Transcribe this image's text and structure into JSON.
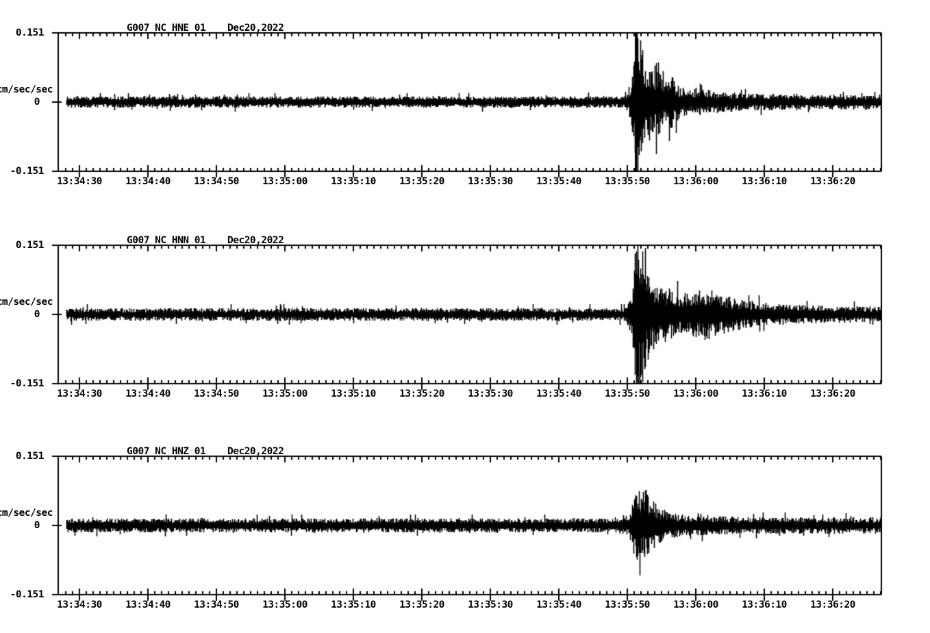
{
  "page": {
    "background": "#ffffff",
    "ink": "#000000",
    "description": "Three-channel strong-motion seismogram display, station G007 network NC, event of Dec 20 2022 ~13:35:51"
  },
  "chart_data": [
    {
      "type": "line",
      "kind": "seismogram",
      "station": "G007_NC_HNE_01",
      "date": "Dec20,2022",
      "ylabel": "cm/sec/sec",
      "ylim": [
        -0.151,
        0.151
      ],
      "y_tick_labels": [
        "0.151",
        "0",
        "-0.151"
      ],
      "x_tick_labels": [
        "13:34:30",
        "13:34:40",
        "13:34:50",
        "13:35:00",
        "13:35:10",
        "13:35:20",
        "13:35:30",
        "13:35:40",
        "13:35:50",
        "13:36:00",
        "13:36:10",
        "13:36:20"
      ],
      "x_major_step_s": 10,
      "x_minor_step_s": 1,
      "x_range": [
        "13:34:27",
        "13:36:27"
      ],
      "grid": false,
      "noise_amplitude": 0.0085,
      "event": {
        "time": "13:35:51",
        "peak_up": 0.13,
        "peak_down": -0.151,
        "clipped": true,
        "clip_t": 81.2
      },
      "seed": 19,
      "envelope": [
        [
          -3,
          0.0085
        ],
        [
          79.3,
          0.0085
        ],
        [
          80.2,
          0.016
        ],
        [
          80.8,
          0.05
        ],
        [
          81.2,
          0.125
        ],
        [
          81.8,
          0.1
        ],
        [
          82.5,
          0.062
        ],
        [
          83.5,
          0.045
        ],
        [
          84.5,
          0.05
        ],
        [
          85.5,
          0.032
        ],
        [
          86.5,
          0.04
        ],
        [
          87.5,
          0.024
        ],
        [
          89,
          0.018
        ],
        [
          91,
          0.02
        ],
        [
          93,
          0.015
        ],
        [
          96,
          0.0135
        ],
        [
          100,
          0.0125
        ],
        [
          106,
          0.0115
        ],
        [
          117.5,
          0.011
        ]
      ],
      "spikes": [
        [
          80.9,
          0.075,
          0.05
        ],
        [
          81.15,
          0.128,
          0.151
        ],
        [
          81.4,
          0.105,
          0.085
        ],
        [
          81.7,
          0.07,
          0.115
        ],
        [
          82.2,
          0.06,
          0.09
        ],
        [
          82.9,
          0.05,
          0.06
        ],
        [
          86.3,
          0.03,
          0.055
        ]
      ]
    },
    {
      "type": "line",
      "kind": "seismogram",
      "station": "G007_NC_HNN_01",
      "date": "Dec20,2022",
      "ylabel": "cm/sec/sec",
      "ylim": [
        -0.151,
        0.151
      ],
      "y_tick_labels": [
        "0.151",
        "0",
        "-0.151"
      ],
      "x_tick_labels": [
        "13:34:30",
        "13:34:40",
        "13:34:50",
        "13:35:00",
        "13:35:10",
        "13:35:20",
        "13:35:30",
        "13:35:40",
        "13:35:50",
        "13:36:00",
        "13:36:10",
        "13:36:20"
      ],
      "x_major_step_s": 10,
      "x_minor_step_s": 1,
      "x_range": [
        "13:34:27",
        "13:36:27"
      ],
      "grid": false,
      "noise_amplitude": 0.0095,
      "event": {
        "time": "13:35:51",
        "peak_up": 0.142,
        "peak_down": -0.145,
        "clipped": false,
        "clip_t": 81.3
      },
      "seed": 47,
      "envelope": [
        [
          -3,
          0.0095
        ],
        [
          79.3,
          0.0095
        ],
        [
          80.2,
          0.018
        ],
        [
          80.9,
          0.06
        ],
        [
          81.35,
          0.135
        ],
        [
          82,
          0.11
        ],
        [
          82.8,
          0.07
        ],
        [
          83.8,
          0.052
        ],
        [
          85,
          0.042
        ],
        [
          86.5,
          0.038
        ],
        [
          88,
          0.032
        ],
        [
          90,
          0.034
        ],
        [
          92,
          0.038
        ],
        [
          93.5,
          0.03
        ],
        [
          95,
          0.026
        ],
        [
          97,
          0.021
        ],
        [
          100,
          0.017
        ],
        [
          104,
          0.0145
        ],
        [
          110,
          0.0125
        ],
        [
          117.5,
          0.0115
        ]
      ],
      "spikes": [
        [
          81.0,
          0.095,
          0.07
        ],
        [
          81.3,
          0.138,
          0.1
        ],
        [
          81.55,
          0.12,
          0.142
        ],
        [
          81.9,
          0.085,
          0.12
        ],
        [
          82.4,
          0.07,
          0.095
        ],
        [
          83.2,
          0.06,
          0.075
        ],
        [
          84.0,
          0.05,
          0.06
        ]
      ]
    },
    {
      "type": "line",
      "kind": "seismogram",
      "station": "G007_NC_HNZ_01",
      "date": "Dec20,2022",
      "ylabel": "cm/sec/sec",
      "ylim": [
        -0.151,
        0.151
      ],
      "y_tick_labels": [
        "0.151",
        "0",
        "-0.151"
      ],
      "x_tick_labels": [
        "13:34:30",
        "13:34:40",
        "13:34:50",
        "13:35:00",
        "13:35:10",
        "13:35:20",
        "13:35:30",
        "13:35:40",
        "13:35:50",
        "13:36:00",
        "13:36:10",
        "13:36:20"
      ],
      "x_major_step_s": 10,
      "x_minor_step_s": 1,
      "x_range": [
        "13:34:27",
        "13:36:27"
      ],
      "grid": false,
      "noise_amplitude": 0.0105,
      "event": {
        "time": "13:35:51",
        "peak_up": 0.065,
        "peak_down": -0.07,
        "clipped": false,
        "clip_t": 81.2
      },
      "seed": 83,
      "envelope": [
        [
          -3,
          0.0105
        ],
        [
          78.5,
          0.0105
        ],
        [
          80,
          0.016
        ],
        [
          80.9,
          0.042
        ],
        [
          81.3,
          0.06
        ],
        [
          82,
          0.05
        ],
        [
          82.8,
          0.052
        ],
        [
          83.8,
          0.035
        ],
        [
          85,
          0.025
        ],
        [
          86.5,
          0.019
        ],
        [
          88.5,
          0.016
        ],
        [
          91,
          0.0145
        ],
        [
          95,
          0.013
        ],
        [
          100,
          0.0125
        ],
        [
          117.5,
          0.012
        ]
      ],
      "spikes": [
        [
          80.8,
          0.04,
          0.028
        ],
        [
          81.15,
          0.063,
          0.045
        ],
        [
          81.5,
          0.048,
          0.066
        ],
        [
          82.2,
          0.05,
          0.042
        ],
        [
          83.0,
          0.038,
          0.05
        ],
        [
          83.9,
          0.028,
          0.036
        ]
      ]
    }
  ]
}
